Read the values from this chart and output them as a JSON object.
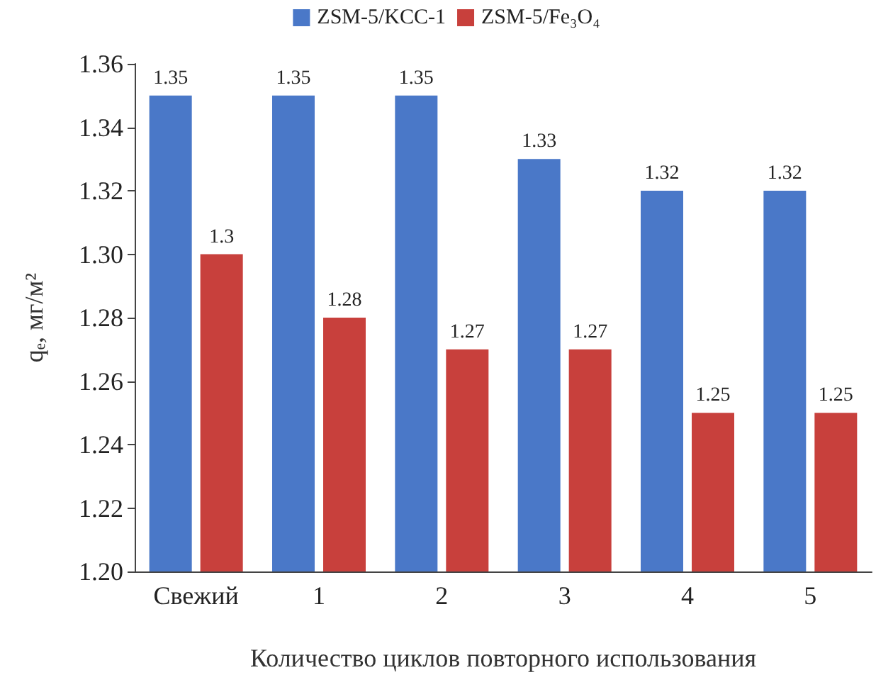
{
  "chart_data": {
    "type": "bar",
    "xlabel": "Количество циклов повторного использования",
    "ylabel": "qₑ, мг/м²",
    "categories": [
      "Свежий",
      "1",
      "2",
      "3",
      "4",
      "5"
    ],
    "series": [
      {
        "name": "ZSM-5/KCC-1",
        "color": "#4a78c8",
        "values": [
          1.35,
          1.35,
          1.35,
          1.33,
          1.32,
          1.32
        ]
      },
      {
        "name": "ZSM-5/Fe₃O₄",
        "color": "#c8403c",
        "values": [
          1.3,
          1.28,
          1.27,
          1.27,
          1.25,
          1.25
        ]
      }
    ],
    "ylim": [
      1.2,
      1.36
    ],
    "yticks": [
      {
        "value": 1.2,
        "label": "1.20"
      },
      {
        "value": 1.22,
        "label": "1.22"
      },
      {
        "value": 1.24,
        "label": "1.24"
      },
      {
        "value": 1.26,
        "label": "1.26"
      },
      {
        "value": 1.28,
        "label": "1.28"
      },
      {
        "value": 1.3,
        "label": "1.30"
      },
      {
        "value": 1.32,
        "label": "1.32"
      },
      {
        "value": 1.34,
        "label": "1.34"
      },
      {
        "value": 1.36,
        "label": "1.36"
      }
    ],
    "data_labels": true,
    "grid": false,
    "legend": "top"
  }
}
